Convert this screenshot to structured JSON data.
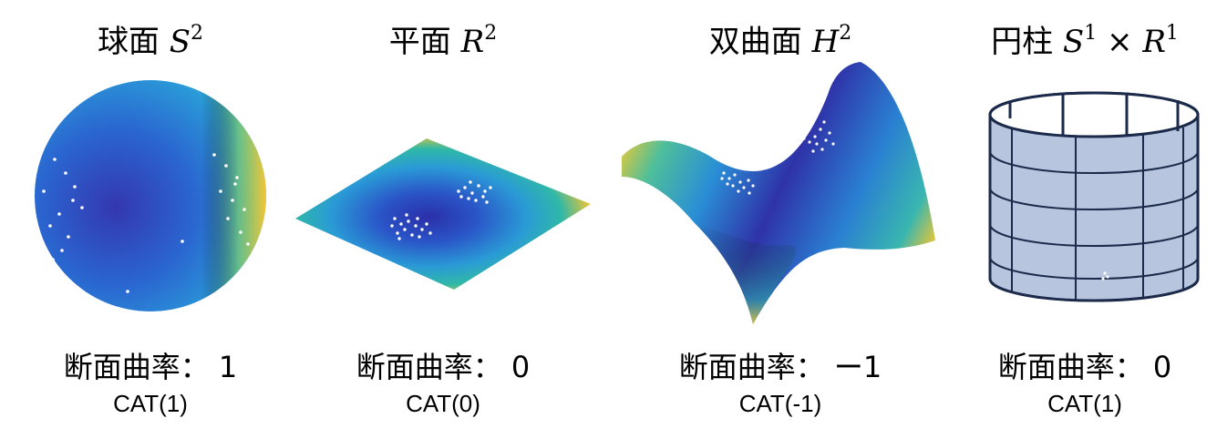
{
  "panels": [
    {
      "name_cjk": "球面",
      "symbol": "S",
      "sup": "2",
      "curvature_label": "断面曲率：",
      "curvature_value": "1",
      "cat": "CAT(1)"
    },
    {
      "name_cjk": "平面",
      "symbol": "R",
      "sup": "2",
      "curvature_label": "断面曲率：",
      "curvature_value": "0",
      "cat": "CAT(0)"
    },
    {
      "name_cjk": "双曲面",
      "symbol": "H",
      "sup": "2",
      "curvature_label": "断面曲率：",
      "curvature_value": "ー1",
      "cat": "CAT(-1)"
    },
    {
      "name_cjk": "円柱",
      "symbol": "S",
      "sup": "1",
      "times": "×",
      "symbol2": "R",
      "sup2": "1",
      "curvature_label": "断面曲率：",
      "curvature_value": "0",
      "cat": "CAT(1)"
    }
  ],
  "colors": {
    "surface_dark": "#3d3bb0",
    "surface_mid": "#2a8fd6",
    "surface_teal": "#2fb8b0",
    "surface_yellow": "#f5c534",
    "points": "#ffffff",
    "cylinder_fill": "#b7c6de",
    "cylinder_stroke": "#1b2a4a"
  }
}
